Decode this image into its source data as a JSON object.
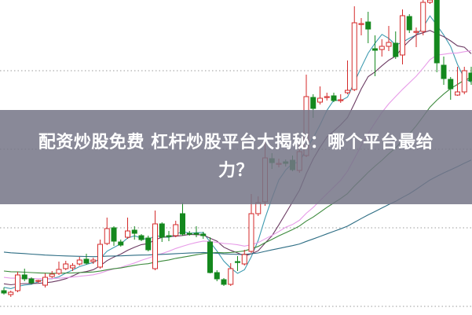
{
  "title": {
    "line1": "配资炒股免费 杠杆炒股平台大揭秘：哪个平台最给",
    "line2": "力？"
  },
  "chart_data": {
    "type": "candlestick",
    "title": "",
    "xlabel": "",
    "ylabel": "",
    "ylim": [
      10,
      30
    ],
    "grid": true,
    "grid_style": "dotted horizontal",
    "gridlines": [
      10.5,
      15.5,
      20.5,
      25.5
    ],
    "legend": "none",
    "colors": {
      "up": "#d42a2a",
      "down": "#14881e",
      "background": "#ffffff",
      "grid": "#999999"
    },
    "moving_averages": [
      {
        "period": 5,
        "color": "#3f9bb0"
      },
      {
        "period": 10,
        "color": "#6b3a62"
      },
      {
        "period": 20,
        "color": "#e79be8"
      },
      {
        "period": 30,
        "color": "#3c8a3c"
      },
      {
        "period": 60,
        "color": "#2d6d84"
      }
    ],
    "candles": [
      [
        11.5,
        11.35,
        11.7,
        11.25
      ],
      [
        11.25,
        11.4,
        11.5,
        11.1
      ],
      [
        11.5,
        12.5,
        12.7,
        11.4
      ],
      [
        12.5,
        12.25,
        12.9,
        12.1
      ],
      [
        12.25,
        12.0,
        12.35,
        11.9
      ],
      [
        12.1,
        12.15,
        12.2,
        12.0
      ],
      [
        11.85,
        12.35,
        12.6,
        11.7
      ],
      [
        12.4,
        12.55,
        12.75,
        12.3
      ],
      [
        12.6,
        12.85,
        13.35,
        12.5
      ],
      [
        12.9,
        13.2,
        13.4,
        12.8
      ],
      [
        12.95,
        13.1,
        13.25,
        12.75
      ],
      [
        13.2,
        13.45,
        13.65,
        13.1
      ],
      [
        13.5,
        13.25,
        13.85,
        13.15
      ],
      [
        13.35,
        13.45,
        13.6,
        13.2
      ],
      [
        13.0,
        14.45,
        14.75,
        12.9
      ],
      [
        14.5,
        15.45,
        16.15,
        14.4
      ],
      [
        15.5,
        14.65,
        15.6,
        14.35
      ],
      [
        14.6,
        14.4,
        14.75,
        14.3
      ],
      [
        14.9,
        15.3,
        16.15,
        14.8
      ],
      [
        15.35,
        15.15,
        15.6,
        14.75
      ],
      [
        15.0,
        14.75,
        15.1,
        14.65
      ],
      [
        14.85,
        14.1,
        15.0,
        14.0
      ],
      [
        12.9,
        15.75,
        16.6,
        12.8
      ],
      [
        15.75,
        14.9,
        15.85,
        14.6
      ],
      [
        15.0,
        14.95,
        15.3,
        14.65
      ],
      [
        15.0,
        15.7,
        15.95,
        14.9
      ],
      [
        16.4,
        15.1,
        17.1,
        15.0
      ],
      [
        15.15,
        15.1,
        15.3,
        15.0
      ],
      [
        15.15,
        15.1,
        15.6,
        14.9
      ],
      [
        15.1,
        15.0,
        15.25,
        14.8
      ],
      [
        14.6,
        12.65,
        14.9,
        12.6
      ],
      [
        12.65,
        12.25,
        12.8,
        12.1
      ],
      [
        12.2,
        11.9,
        12.3,
        11.8
      ],
      [
        11.9,
        12.9,
        13.25,
        11.8
      ],
      [
        13.35,
        13.3,
        13.7,
        12.75
      ],
      [
        13.2,
        13.8,
        14.1,
        13.1
      ],
      [
        14.0,
        16.4,
        17.65,
        13.9
      ],
      [
        16.4,
        17.1,
        17.5,
        16.25
      ],
      [
        17.15,
        19.95,
        21.0,
        16.9
      ],
      [
        19.9,
        19.65,
        20.25,
        19.25
      ],
      [
        19.6,
        19.6,
        19.9,
        19.35
      ],
      [
        19.7,
        19.6,
        19.85,
        19.4
      ],
      [
        19.8,
        19.2,
        20.1,
        19.1
      ],
      [
        19.15,
        20.35,
        20.85,
        19.0
      ],
      [
        20.1,
        23.85,
        25.25,
        20.0
      ],
      [
        23.8,
        23.1,
        24.0,
        22.5
      ],
      [
        23.5,
        23.75,
        24.5,
        23.35
      ],
      [
        23.8,
        23.85,
        24.1,
        23.6
      ],
      [
        23.9,
        23.6,
        24.1,
        23.5
      ],
      [
        23.65,
        23.65,
        24.0,
        23.45
      ],
      [
        24.1,
        24.25,
        26.15,
        24.0
      ],
      [
        24.3,
        28.55,
        29.6,
        24.2
      ],
      [
        28.5,
        28.5,
        28.85,
        27.75
      ],
      [
        28.6,
        28.15,
        29.25,
        27.25
      ],
      [
        26.9,
        26.8,
        27.75,
        25.15
      ],
      [
        26.85,
        27.05,
        27.5,
        26.4
      ],
      [
        27.05,
        27.3,
        28.35,
        26.75
      ],
      [
        27.25,
        26.4,
        28.0,
        26.25
      ],
      [
        26.5,
        29.0,
        29.4,
        25.9
      ],
      [
        28.95,
        28.1,
        29.1,
        27.9
      ],
      [
        28.0,
        28.0,
        28.25,
        27.0
      ],
      [
        28.0,
        29.85,
        30.0,
        27.75
      ],
      [
        29.85,
        30.0,
        30.0,
        29.75
      ],
      [
        30.0,
        26.0,
        30.0,
        25.4
      ],
      [
        25.85,
        25.0,
        26.4,
        24.6
      ],
      [
        24.95,
        24.35,
        25.1,
        23.65
      ],
      [
        23.95,
        24.15,
        25.75,
        23.9
      ],
      [
        24.15,
        25.5,
        25.75,
        24.0
      ],
      [
        25.35,
        24.85,
        25.75,
        24.6
      ]
    ],
    "candle_fields": [
      "open",
      "close",
      "high",
      "low"
    ]
  }
}
